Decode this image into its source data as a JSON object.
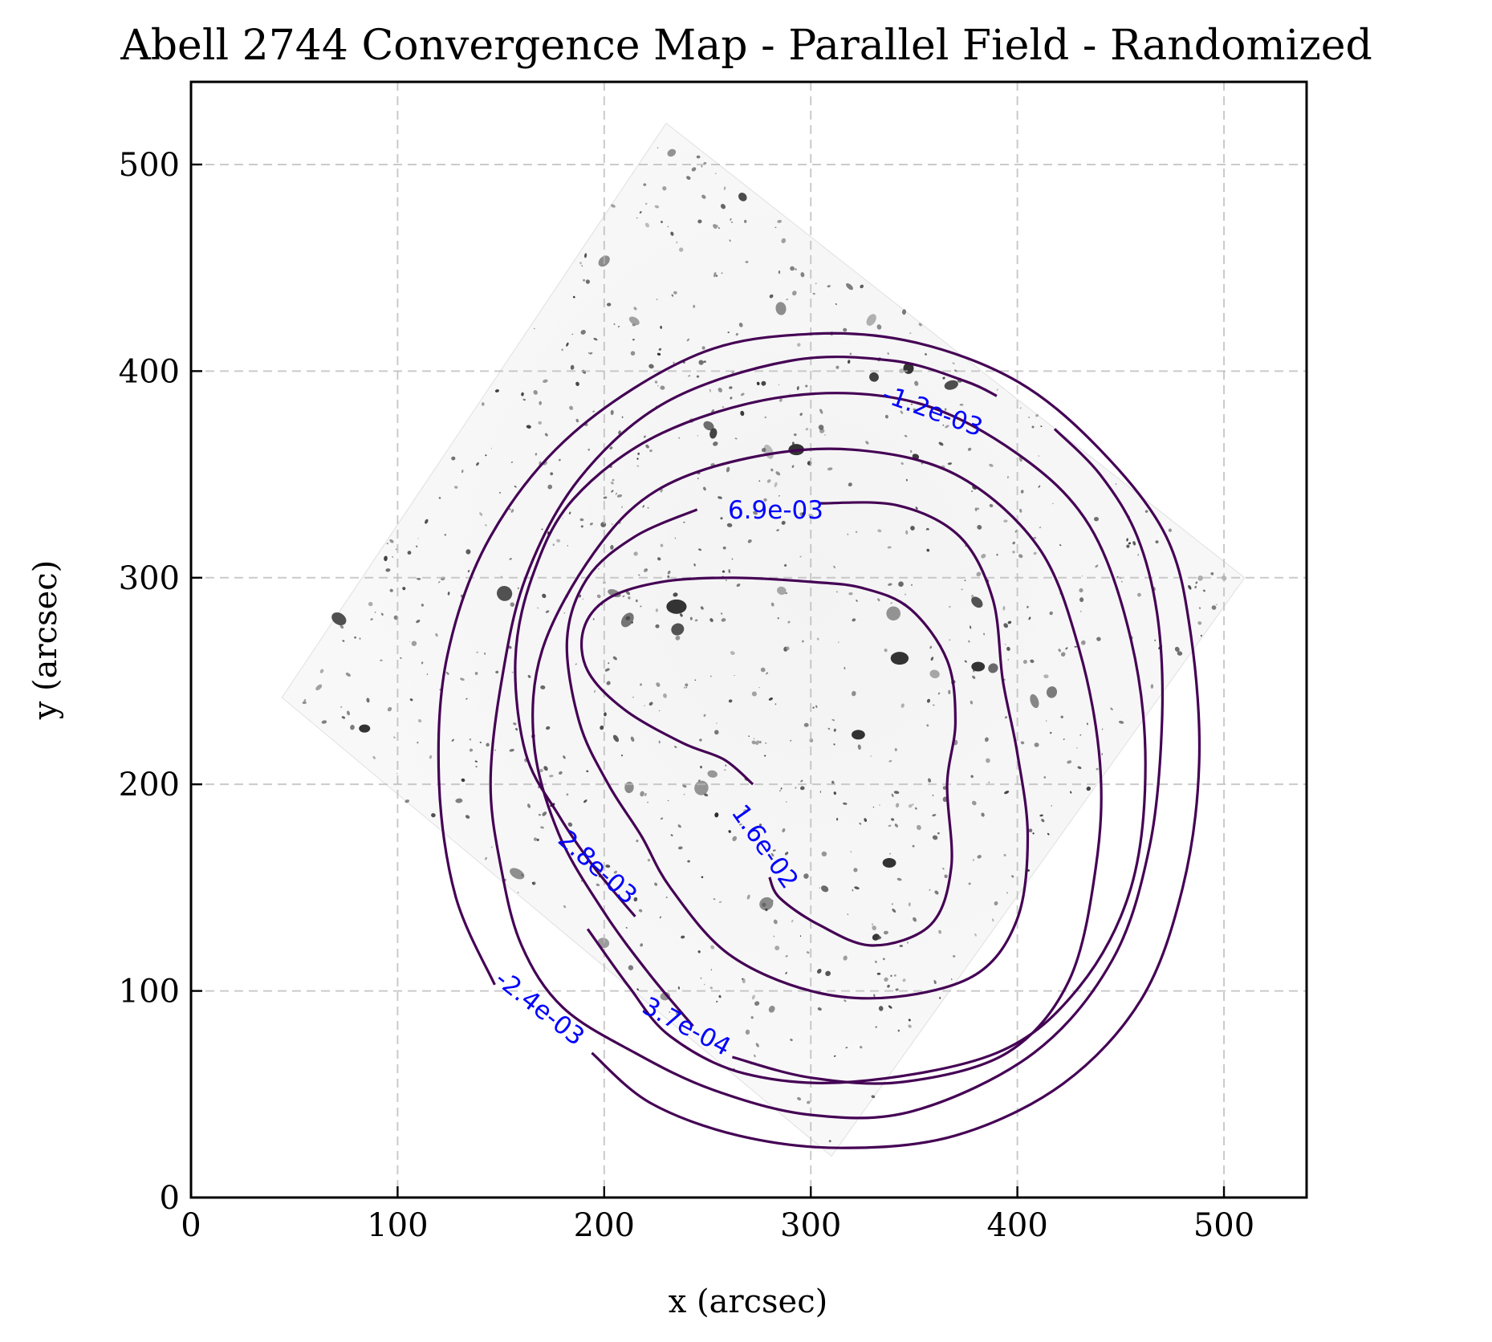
{
  "chart_data": {
    "type": "contour",
    "title": "Abell 2744 Convergence Map - Parallel Field - Randomized",
    "xlabel": "x (arcsec)",
    "ylabel": "y (arcsec)",
    "xlim": [
      0,
      540
    ],
    "ylim": [
      0,
      540
    ],
    "xticks": [
      0,
      100,
      200,
      300,
      400,
      500
    ],
    "yticks": [
      0,
      100,
      200,
      300,
      400,
      500
    ],
    "grid": true,
    "background_image": "HST field image (grayscale), rotated square footprint",
    "footprint_corners": [
      [
        230,
        520
      ],
      [
        510,
        300
      ],
      [
        310,
        20
      ],
      [
        44,
        242
      ]
    ],
    "contour_color": "#440154",
    "label_color": "#0000ff",
    "contours": [
      {
        "level_label": "1.6e-02",
        "points": [
          [
            272,
            200
          ],
          [
            258,
            212
          ],
          [
            238,
            220
          ],
          [
            210,
            236
          ],
          [
            192,
            255
          ],
          [
            190,
            275
          ],
          [
            202,
            290
          ],
          [
            228,
            298
          ],
          [
            262,
            300
          ],
          [
            300,
            298
          ],
          [
            325,
            295
          ],
          [
            348,
            285
          ],
          [
            366,
            260
          ],
          [
            370,
            230
          ],
          [
            366,
            200
          ],
          [
            368,
            160
          ],
          [
            358,
            132
          ],
          [
            330,
            122
          ],
          [
            304,
            132
          ],
          [
            285,
            145
          ],
          [
            280,
            155
          ]
        ]
      },
      {
        "level_label": "6.9e-03",
        "points": [
          [
            245,
            333
          ],
          [
            215,
            320
          ],
          [
            192,
            300
          ],
          [
            182,
            270
          ],
          [
            188,
            230
          ],
          [
            202,
            200
          ],
          [
            218,
            175
          ],
          [
            232,
            150
          ],
          [
            260,
            118
          ],
          [
            300,
            100
          ],
          [
            340,
            97
          ],
          [
            380,
            108
          ],
          [
            400,
            135
          ],
          [
            405,
            175
          ],
          [
            400,
            215
          ],
          [
            393,
            250
          ],
          [
            388,
            290
          ],
          [
            372,
            320
          ],
          [
            342,
            335
          ],
          [
            304,
            336
          ]
        ]
      },
      {
        "level_label": "3.7e-04",
        "points": [
          [
            262,
            68
          ],
          [
            300,
            58
          ],
          [
            345,
            56
          ],
          [
            395,
            70
          ],
          [
            425,
            105
          ],
          [
            438,
            160
          ],
          [
            440,
            210
          ],
          [
            430,
            265
          ],
          [
            410,
            315
          ],
          [
            370,
            350
          ],
          [
            320,
            362
          ],
          [
            270,
            358
          ],
          [
            225,
            342
          ],
          [
            195,
            312
          ],
          [
            170,
            265
          ],
          [
            166,
            220
          ],
          [
            178,
            176
          ],
          [
            200,
            138
          ],
          [
            222,
            108
          ],
          [
            243,
            83
          ]
        ]
      },
      {
        "level_label": "2.8e-03",
        "points": [
          [
            215,
            136
          ],
          [
            195,
            160
          ],
          [
            178,
            185
          ],
          [
            162,
            215
          ],
          [
            157,
            260
          ],
          [
            165,
            300
          ],
          [
            185,
            338
          ],
          [
            228,
            370
          ],
          [
            290,
            388
          ],
          [
            350,
            385
          ],
          [
            400,
            360
          ],
          [
            435,
            325
          ],
          [
            455,
            270
          ],
          [
            462,
            210
          ],
          [
            455,
            150
          ],
          [
            430,
            102
          ],
          [
            390,
            70
          ],
          [
            320,
            56
          ],
          [
            268,
            60
          ],
          [
            232,
            78
          ],
          [
            212,
            102
          ],
          [
            192,
            130
          ]
        ]
      },
      {
        "level_label": "-1.2e-03",
        "points": [
          [
            418,
            372
          ],
          [
            440,
            350
          ],
          [
            458,
            320
          ],
          [
            468,
            280
          ],
          [
            470,
            230
          ],
          [
            464,
            170
          ],
          [
            446,
            115
          ],
          [
            408,
            70
          ],
          [
            350,
            42
          ],
          [
            300,
            40
          ],
          [
            253,
            52
          ],
          [
            215,
            70
          ],
          [
            180,
            92
          ],
          [
            160,
            122
          ],
          [
            150,
            160
          ],
          [
            145,
            200
          ],
          [
            150,
            248
          ],
          [
            162,
            300
          ],
          [
            188,
            348
          ],
          [
            230,
            385
          ],
          [
            290,
            405
          ],
          [
            340,
            405
          ],
          [
            375,
            395
          ],
          [
            390,
            388
          ]
        ]
      },
      {
        "level_label": "-2.4e-03",
        "points": [
          [
            147,
            103
          ],
          [
            128,
            146
          ],
          [
            120,
            202
          ],
          [
            124,
            262
          ],
          [
            145,
            320
          ],
          [
            185,
            370
          ],
          [
            245,
            408
          ],
          [
            300,
            418
          ],
          [
            350,
            414
          ],
          [
            400,
            395
          ],
          [
            440,
            362
          ],
          [
            472,
            320
          ],
          [
            484,
            272
          ],
          [
            488,
            210
          ],
          [
            480,
            150
          ],
          [
            460,
            96
          ],
          [
            422,
            55
          ],
          [
            370,
            30
          ],
          [
            315,
            24
          ],
          [
            265,
            30
          ],
          [
            222,
            46
          ],
          [
            194,
            70
          ]
        ]
      }
    ],
    "contour_labels": [
      {
        "text": "-1.2e-03",
        "x": 359,
        "y": 381,
        "rotation": 20
      },
      {
        "text": "6.9e-03",
        "x": 283,
        "y": 333,
        "rotation": 0
      },
      {
        "text": "1.6e-02",
        "x": 278,
        "y": 170,
        "rotation": 55
      },
      {
        "text": "2.8e-03",
        "x": 197,
        "y": 160,
        "rotation": 42
      },
      {
        "text": "3.7e-04",
        "x": 240,
        "y": 83,
        "rotation": 28
      },
      {
        "text": "-2.4e-03",
        "x": 169,
        "y": 92,
        "rotation": 38
      }
    ]
  }
}
